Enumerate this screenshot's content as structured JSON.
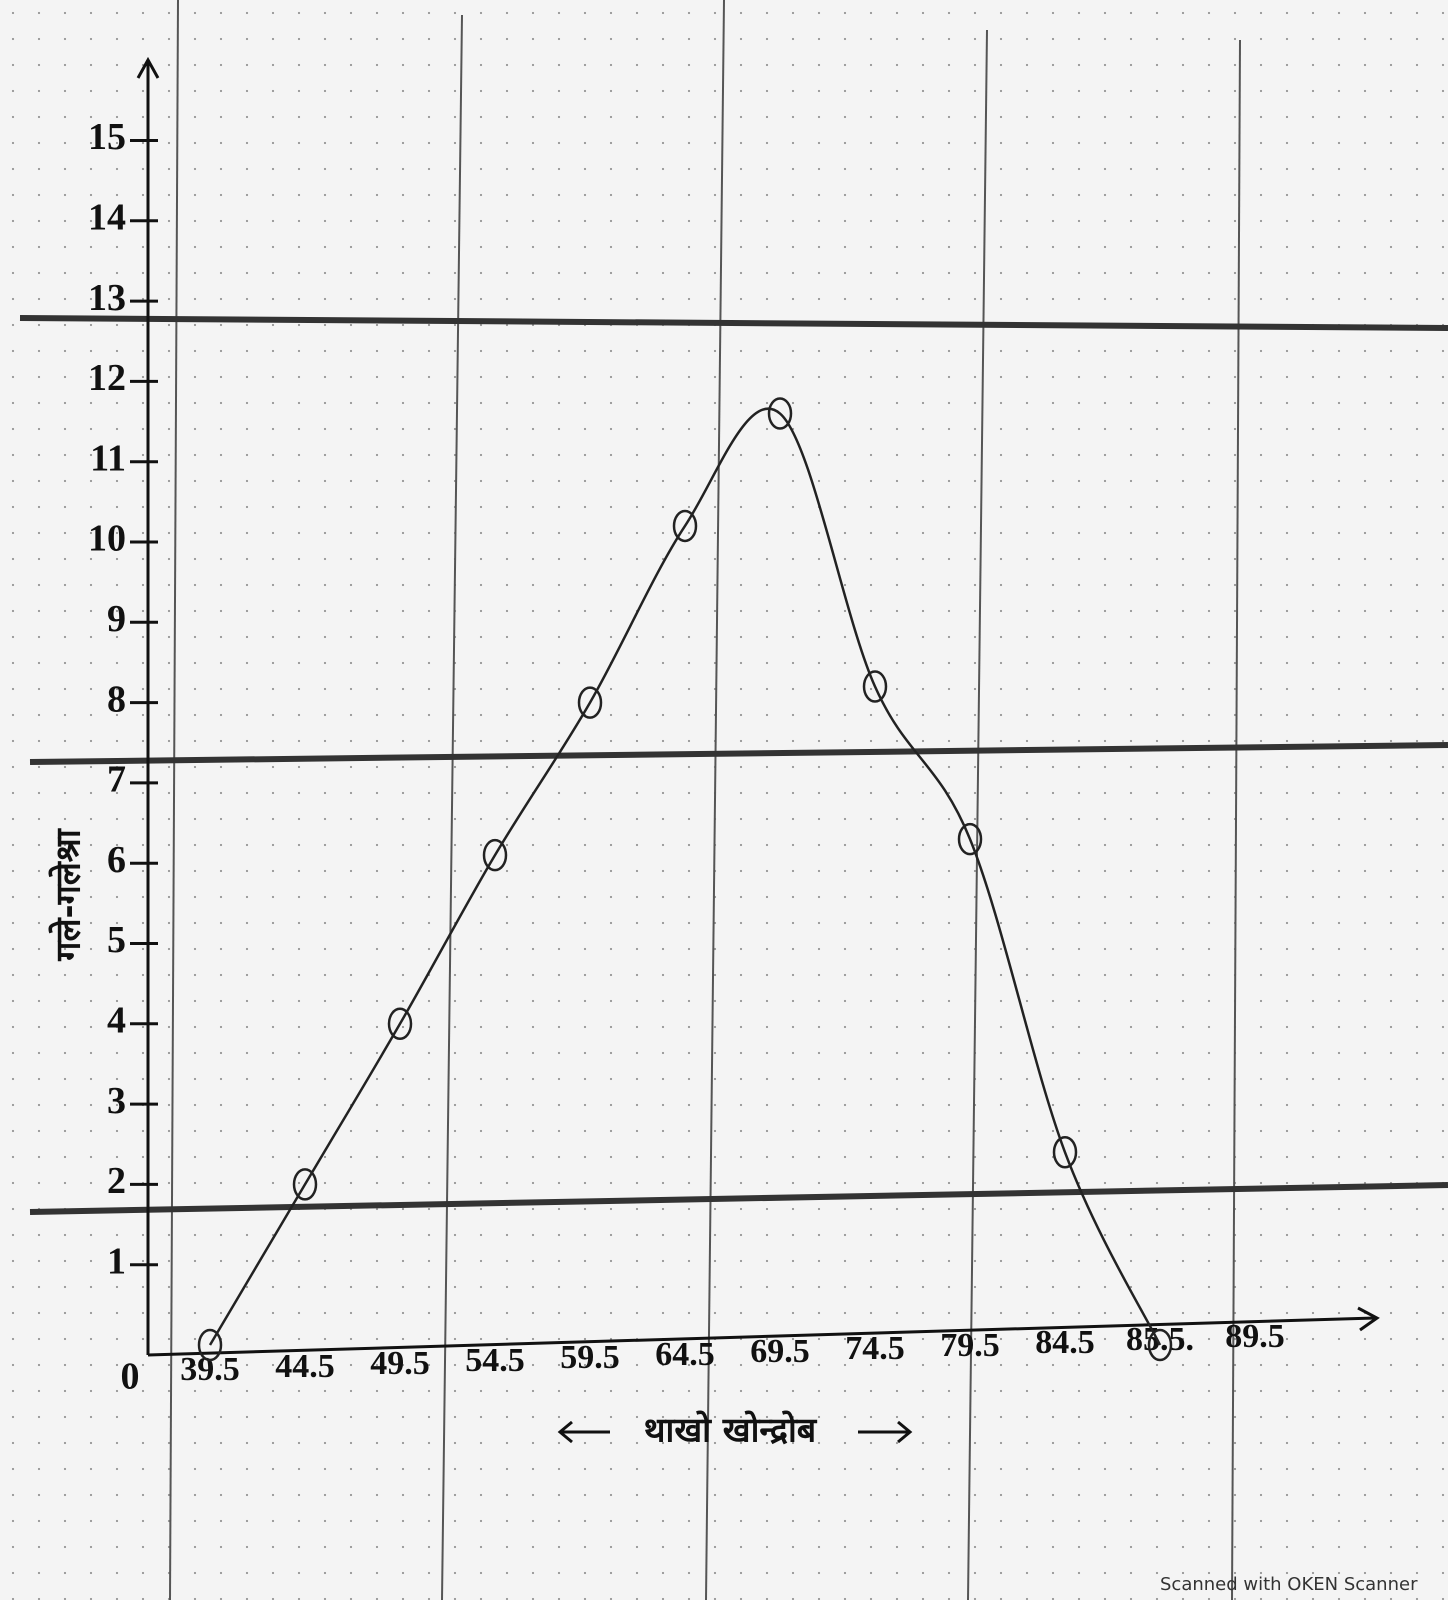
{
  "chart_data": {
    "type": "line",
    "x_label": "थाखो खोन्द्रोब",
    "y_label": "गले-गलेश्रा",
    "origin_label": "0",
    "categories": [
      "39.5",
      "44.5",
      "49.5",
      "54.5",
      "59.5",
      "64.5",
      "69.5",
      "74.5",
      "79.5",
      "84.5",
      "85.5.",
      "89.5"
    ],
    "values": [
      0,
      2,
      4,
      6.1,
      8,
      10.2,
      11.6,
      8.2,
      6.3,
      2.4,
      0,
      null
    ],
    "color": "#222222",
    "ylim": [
      0,
      15.8
    ],
    "yticks": [
      1,
      2,
      3,
      4,
      5,
      6,
      7,
      8,
      9,
      10,
      11,
      12,
      13,
      14,
      15
    ]
  },
  "watermark": "Scanned with OKEN Scanner"
}
